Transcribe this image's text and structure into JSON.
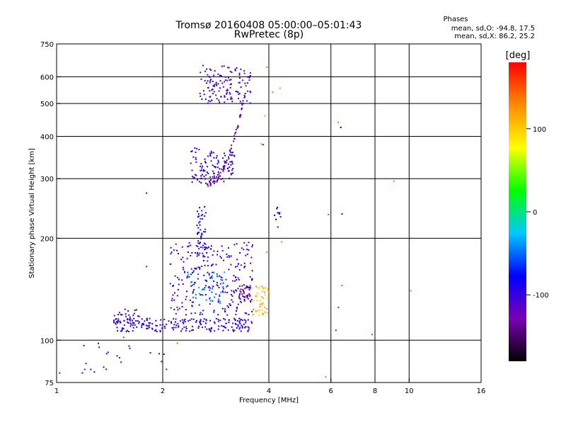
{
  "chart_data": {
    "type": "scatter",
    "title": "Tromsø 20160408 05:00:00–05:01:43",
    "subtitle": "RwPretec (8p)",
    "xlabel": "Frequency [MHz]",
    "ylabel": "Stationary phase Virtual Height [km]",
    "x_scale": "log",
    "y_scale": "log",
    "xlim": [
      1,
      16
    ],
    "ylim": [
      75,
      750
    ],
    "x_ticks": [
      1,
      2,
      4,
      6,
      8,
      10,
      16
    ],
    "y_ticks": [
      75,
      100,
      200,
      300,
      400,
      500,
      600,
      750
    ],
    "x_gridlines": [
      2,
      4,
      6,
      8,
      10
    ],
    "y_gridlines": [
      100,
      200,
      300,
      400,
      500,
      600
    ],
    "grid": true,
    "legend": {
      "title": "Phases",
      "lines": [
        "mean, sd,O: -94.8, 17.5",
        "mean, sd,X: 86.2, 25.2"
      ],
      "placement": "top-right"
    },
    "colorbar": {
      "label": "[deg]",
      "min": -180,
      "max": 180,
      "ticks": [
        100,
        0,
        -100
      ],
      "colors": [
        "#000000",
        "#7a00b4",
        "#0000ff",
        "#00c8ff",
        "#00ff00",
        "#ffff00",
        "#ff8c00",
        "#ff0000"
      ]
    },
    "clusters": [
      {
        "f0": 2.55,
        "f1": 3.55,
        "h0": 500,
        "h1": 650,
        "n": 130,
        "phase": -100,
        "kind": "box"
      },
      {
        "f0": 2.4,
        "f1": 3.2,
        "h0": 290,
        "h1": 370,
        "n": 110,
        "phase": -95,
        "kind": "box"
      },
      {
        "f0": 2.65,
        "f1": 3.45,
        "h0": 290,
        "h1": 560,
        "n": 70,
        "phase": -130,
        "kind": "curve"
      },
      {
        "f0": 1.45,
        "f1": 3.6,
        "h0": 106,
        "h1": 116,
        "n": 200,
        "phase": -95,
        "kind": "box"
      },
      {
        "f0": 2.1,
        "f1": 3.6,
        "h0": 118,
        "h1": 195,
        "n": 260,
        "phase": -100,
        "kind": "box"
      },
      {
        "f0": 2.5,
        "f1": 2.65,
        "h0": 180,
        "h1": 250,
        "n": 45,
        "phase": -90,
        "kind": "box"
      },
      {
        "f0": 2.35,
        "f1": 3.0,
        "h0": 128,
        "h1": 160,
        "n": 50,
        "phase": -50,
        "kind": "box"
      },
      {
        "f0": 3.3,
        "f1": 3.6,
        "h0": 128,
        "h1": 145,
        "n": 30,
        "phase": -140,
        "kind": "box"
      },
      {
        "f0": 1.45,
        "f1": 1.75,
        "h0": 112,
        "h1": 124,
        "n": 35,
        "phase": -100,
        "kind": "box"
      },
      {
        "f0": 3.6,
        "f1": 4.0,
        "h0": 118,
        "h1": 145,
        "n": 45,
        "phase": 110,
        "kind": "box"
      },
      {
        "f0": 4.15,
        "f1": 4.35,
        "h0": 215,
        "h1": 250,
        "n": 10,
        "phase": -90,
        "kind": "box"
      },
      {
        "f0": 1.0,
        "f1": 2.1,
        "h0": 80,
        "h1": 100,
        "n": 20,
        "phase": -110,
        "kind": "box"
      }
    ],
    "points": [
      {
        "x": 3.8,
        "y": 380,
        "phase": 110
      },
      {
        "x": 3.9,
        "y": 460,
        "phase": 120
      },
      {
        "x": 4.1,
        "y": 540,
        "phase": 140
      },
      {
        "x": 4.3,
        "y": 555,
        "phase": 130
      },
      {
        "x": 3.95,
        "y": 640,
        "phase": 140
      },
      {
        "x": 3.85,
        "y": 378,
        "phase": -150
      },
      {
        "x": 6.3,
        "y": 440,
        "phase": 140
      },
      {
        "x": 6.4,
        "y": 425,
        "phase": -170
      },
      {
        "x": 5.9,
        "y": 235,
        "phase": 150
      },
      {
        "x": 6.45,
        "y": 236,
        "phase": -90
      },
      {
        "x": 9.05,
        "y": 295,
        "phase": 10
      },
      {
        "x": 6.3,
        "y": 125,
        "phase": 170
      },
      {
        "x": 6.45,
        "y": 145,
        "phase": 150
      },
      {
        "x": 6.2,
        "y": 107,
        "phase": -60
      },
      {
        "x": 7.85,
        "y": 104,
        "phase": 150
      },
      {
        "x": 10.1,
        "y": 140,
        "phase": 140
      },
      {
        "x": 5.8,
        "y": 78,
        "phase": 10
      },
      {
        "x": 1.8,
        "y": 272,
        "phase": -100
      },
      {
        "x": 1.8,
        "y": 165,
        "phase": -120
      },
      {
        "x": 3.95,
        "y": 182,
        "phase": 30
      },
      {
        "x": 4.35,
        "y": 195,
        "phase": 130
      },
      {
        "x": 2.2,
        "y": 98,
        "phase": 140
      },
      {
        "x": 1.55,
        "y": 102,
        "phase": 160
      },
      {
        "x": 1.02,
        "y": 80,
        "phase": -110
      },
      {
        "x": 1.25,
        "y": 82,
        "phase": -100
      },
      {
        "x": 2.05,
        "y": 82,
        "phase": -130
      }
    ]
  }
}
